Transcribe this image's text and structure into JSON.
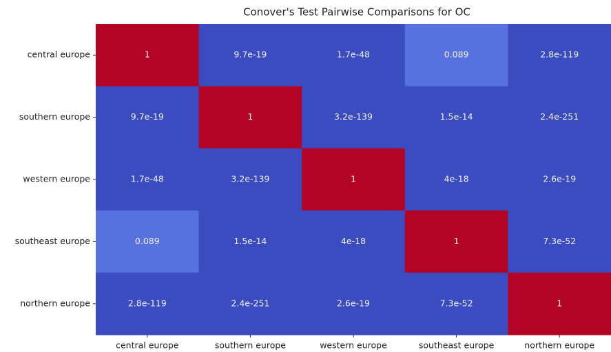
{
  "chart_data": {
    "type": "heatmap",
    "title": "Conover's Test Pairwise Comparisons for OC",
    "x_categories": [
      "central europe",
      "southern europe",
      "western europe",
      "southeast europe",
      "northern europe"
    ],
    "y_categories": [
      "central europe",
      "southern europe",
      "western europe",
      "southeast europe",
      "northern europe"
    ],
    "values": [
      [
        1,
        9.7e-19,
        1.7e-48,
        0.089,
        2.8e-119
      ],
      [
        9.7e-19,
        1,
        3.2e-139,
        1.5e-14,
        2.4e-251
      ],
      [
        1.7e-48,
        3.2e-139,
        1,
        4e-18,
        2.6e-19
      ],
      [
        0.089,
        1.5e-14,
        4e-18,
        1,
        7.3e-52
      ],
      [
        2.8e-119,
        2.4e-251,
        2.6e-19,
        7.3e-52,
        1
      ]
    ],
    "cmap": "coolwarm"
  }
}
